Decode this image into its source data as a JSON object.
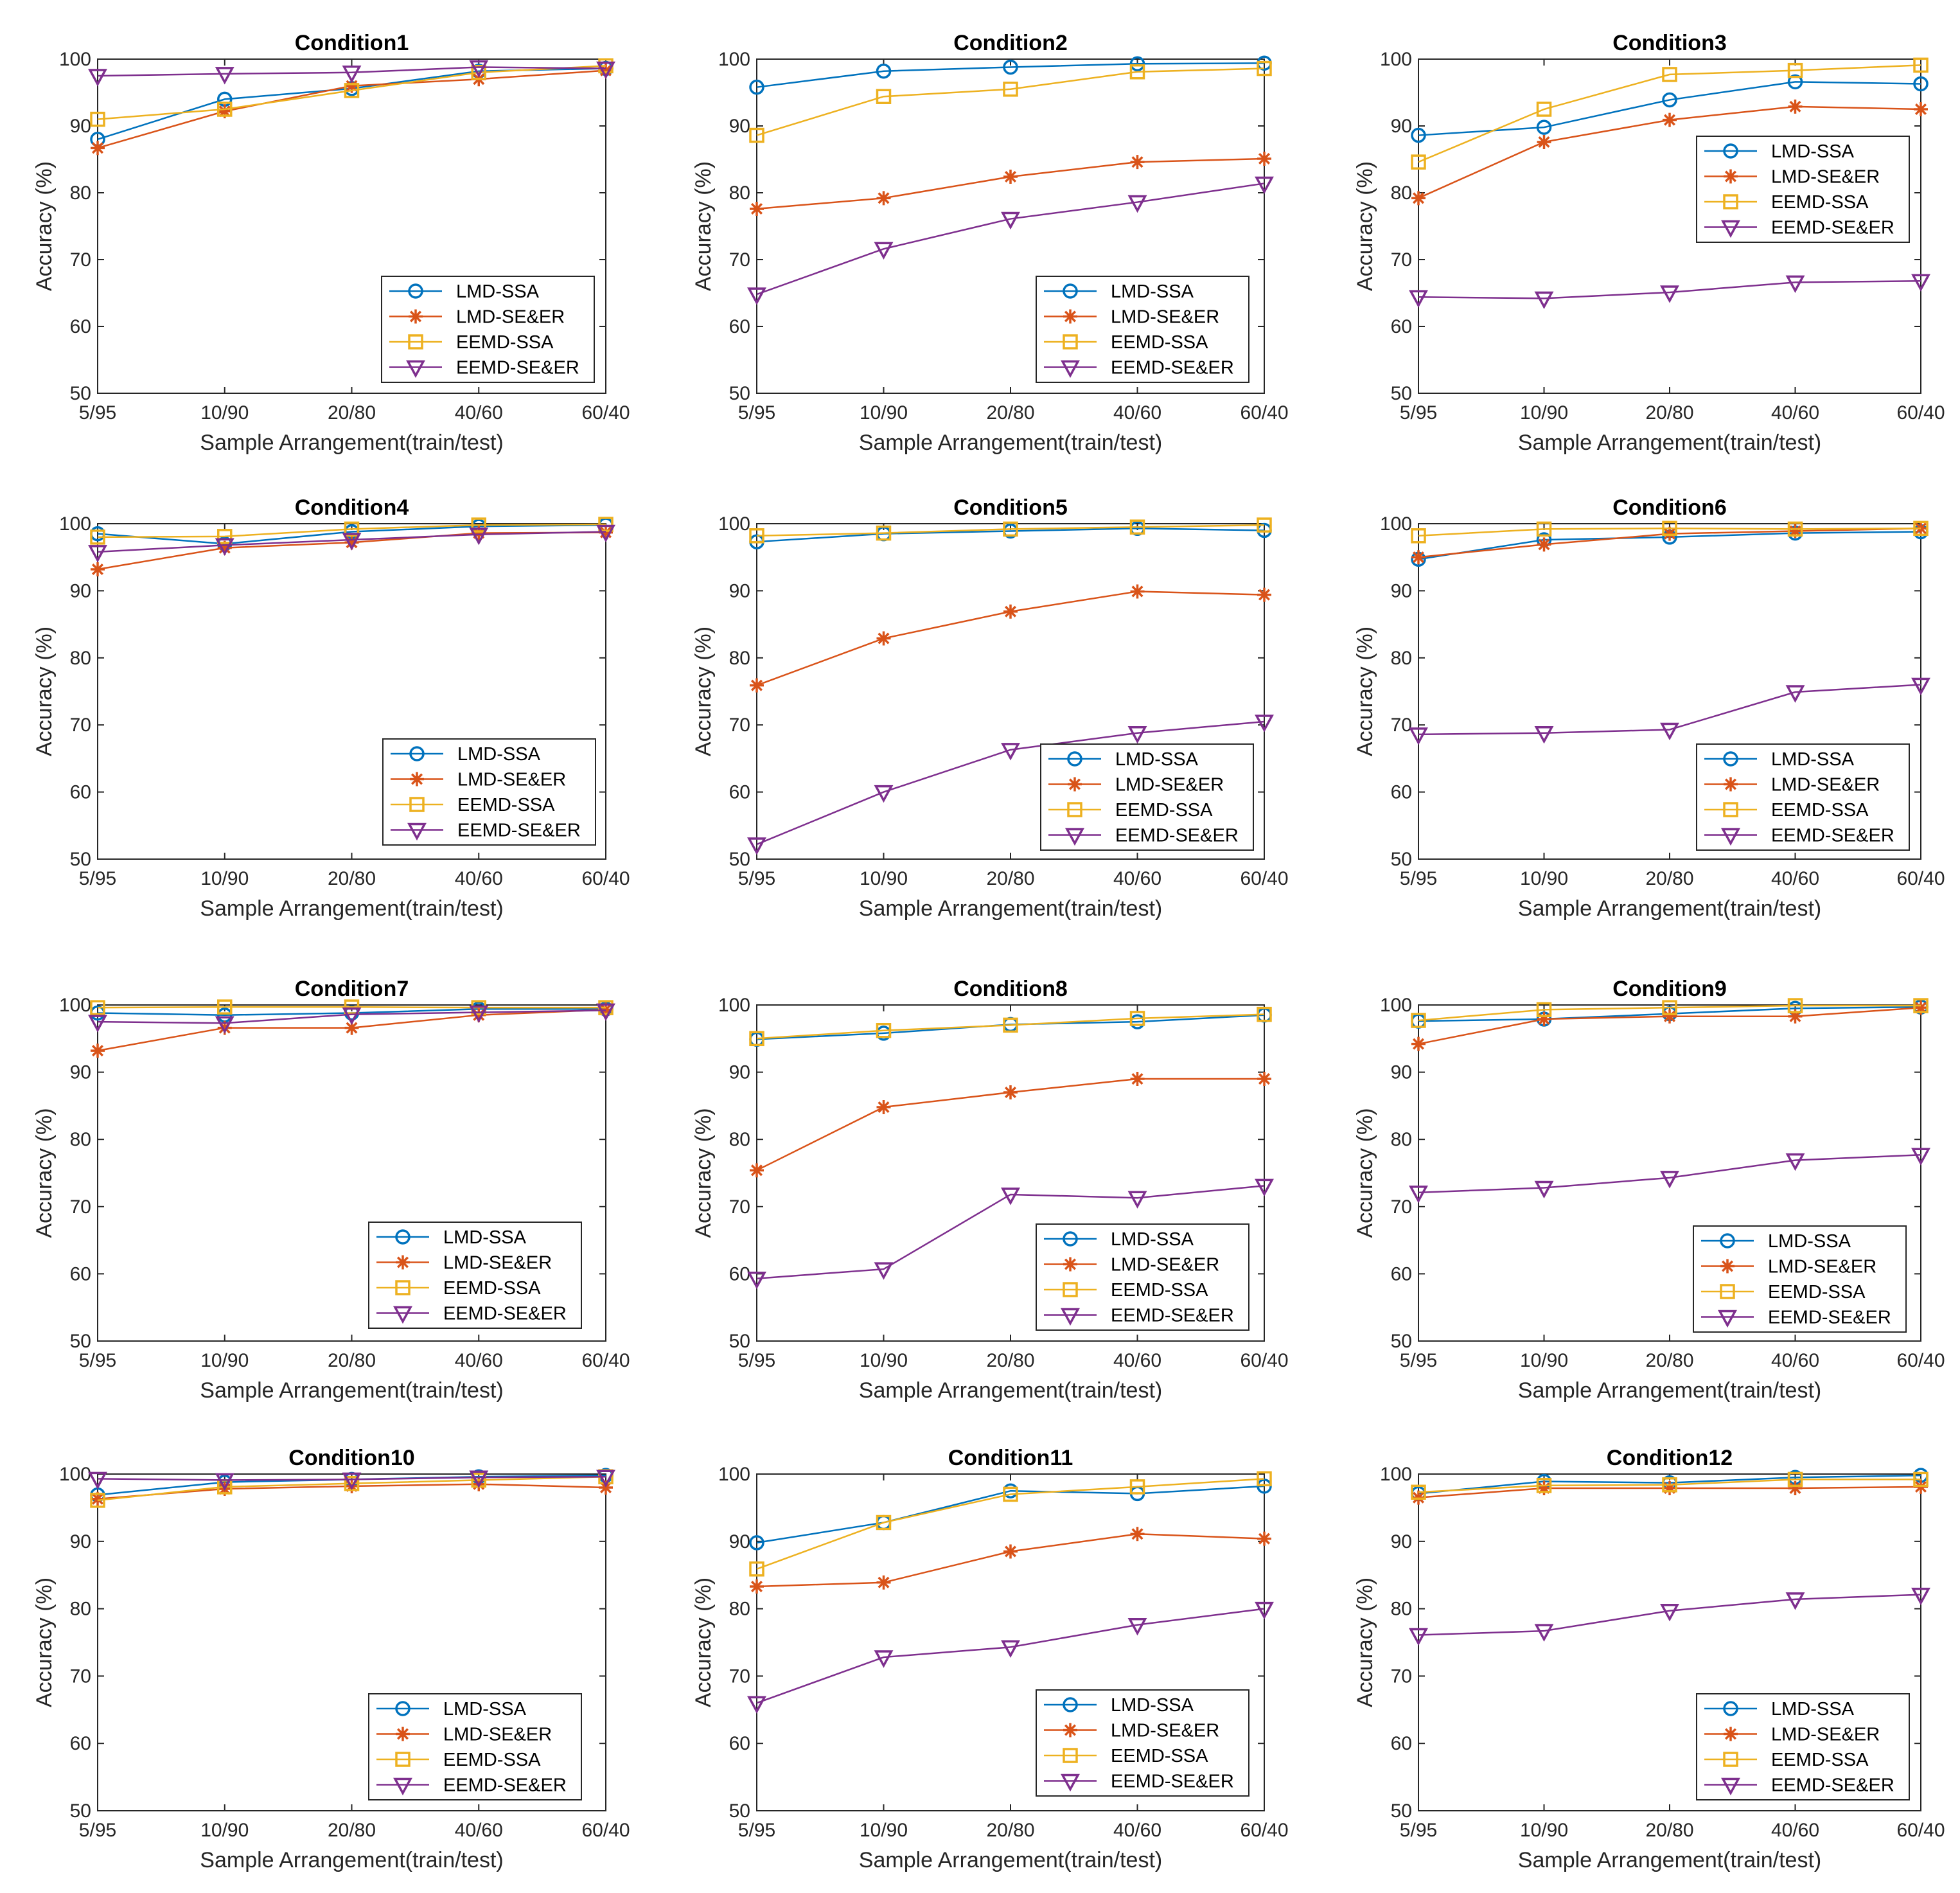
{
  "series_styles": [
    {
      "name": "LMD-SSA",
      "color": "#0072BD",
      "marker": "circle"
    },
    {
      "name": "LMD-SE&ER",
      "color": "#D95319",
      "marker": "asterisk"
    },
    {
      "name": "EEMD-SSA",
      "color": "#EDB120",
      "marker": "square"
    },
    {
      "name": "EEMD-SE&ER",
      "color": "#7E2F8E",
      "marker": "triangle-down"
    }
  ],
  "chart_data": [
    {
      "type": "line",
      "title": "Condition1",
      "xlabel": "Sample Arrangement(train/test)",
      "ylabel": "Accuracy (%)",
      "categories": [
        "5/95",
        "10/90",
        "20/80",
        "40/60",
        "60/40"
      ],
      "ylim": [
        50,
        100
      ],
      "yticks": [
        50,
        60,
        70,
        80,
        90,
        100
      ],
      "legend": "bottom-right",
      "series": [
        {
          "name": "LMD-SSA",
          "values": [
            88,
            94,
            95.6,
            98.2,
            98.6
          ]
        },
        {
          "name": "LMD-SE&ER",
          "values": [
            86.7,
            92.2,
            96,
            97,
            98.3
          ]
        },
        {
          "name": "EEMD-SSA",
          "values": [
            91,
            92.5,
            95.3,
            98,
            99
          ]
        },
        {
          "name": "EEMD-SE&ER",
          "values": [
            97.5,
            97.8,
            98,
            98.8,
            98.6
          ]
        }
      ]
    },
    {
      "type": "line",
      "title": "Condition2",
      "xlabel": "Sample Arrangement(train/test)",
      "ylabel": "Accuracy (%)",
      "categories": [
        "5/95",
        "10/90",
        "20/80",
        "40/60",
        "60/40"
      ],
      "ylim": [
        50,
        100
      ],
      "yticks": [
        50,
        60,
        70,
        80,
        90,
        100
      ],
      "legend": "bottom-right",
      "series": [
        {
          "name": "LMD-SSA",
          "values": [
            95.8,
            98.2,
            98.8,
            99.3,
            99.4
          ]
        },
        {
          "name": "LMD-SE&ER",
          "values": [
            77.6,
            79.2,
            82.4,
            84.6,
            85.1
          ]
        },
        {
          "name": "EEMD-SSA",
          "values": [
            88.6,
            94.4,
            95.5,
            98.1,
            98.6
          ]
        },
        {
          "name": "EEMD-SE&ER",
          "values": [
            64.8,
            71.6,
            76.1,
            78.6,
            81.4
          ]
        }
      ]
    },
    {
      "type": "line",
      "title": "Condition3",
      "xlabel": "Sample Arrangement(train/test)",
      "ylabel": "Accuracy (%)",
      "categories": [
        "5/95",
        "10/90",
        "20/80",
        "40/60",
        "60/40"
      ],
      "ylim": [
        50,
        100
      ],
      "yticks": [
        50,
        60,
        70,
        80,
        90,
        100
      ],
      "legend": "top-right",
      "series": [
        {
          "name": "LMD-SSA",
          "values": [
            88.6,
            89.8,
            93.9,
            96.6,
            96.3
          ]
        },
        {
          "name": "LMD-SE&ER",
          "values": [
            79.2,
            87.6,
            90.9,
            92.9,
            92.5
          ]
        },
        {
          "name": "EEMD-SSA",
          "values": [
            84.6,
            92.5,
            97.7,
            98.3,
            99.1
          ]
        },
        {
          "name": "EEMD-SE&ER",
          "values": [
            64.4,
            64.2,
            65.1,
            66.6,
            66.8
          ]
        }
      ]
    },
    {
      "type": "line",
      "title": "Condition4",
      "xlabel": "Sample Arrangement(train/test)",
      "ylabel": "Accuracy (%)",
      "categories": [
        "5/95",
        "10/90",
        "20/80",
        "40/60",
        "60/40"
      ],
      "ylim": [
        50,
        100
      ],
      "yticks": [
        50,
        60,
        70,
        80,
        90,
        100
      ],
      "legend": "bottom-right",
      "series": [
        {
          "name": "LMD-SSA",
          "values": [
            98.5,
            97,
            98.8,
            99.6,
            99.8
          ]
        },
        {
          "name": "LMD-SE&ER",
          "values": [
            93.2,
            96.4,
            97.2,
            98.6,
            98.7
          ]
        },
        {
          "name": "EEMD-SSA",
          "values": [
            98,
            98.1,
            99.2,
            99.8,
            99.9
          ]
        },
        {
          "name": "EEMD-SE&ER",
          "values": [
            95.8,
            96.8,
            97.6,
            98.4,
            98.8
          ]
        }
      ]
    },
    {
      "type": "line",
      "title": "Condition5",
      "xlabel": "Sample Arrangement(train/test)",
      "ylabel": "Accuracy (%)",
      "categories": [
        "5/95",
        "10/90",
        "20/80",
        "40/60",
        "60/40"
      ],
      "ylim": [
        50,
        100
      ],
      "yticks": [
        50,
        60,
        70,
        80,
        90,
        100
      ],
      "legend": "bottom-right",
      "series": [
        {
          "name": "LMD-SSA",
          "values": [
            97.3,
            98.5,
            98.9,
            99.3,
            99
          ]
        },
        {
          "name": "LMD-SE&ER",
          "values": [
            75.9,
            82.9,
            86.9,
            89.9,
            89.4
          ]
        },
        {
          "name": "EEMD-SSA",
          "values": [
            98.2,
            98.6,
            99.2,
            99.5,
            99.8
          ]
        },
        {
          "name": "EEMD-SE&ER",
          "values": [
            52.2,
            60,
            66.3,
            68.8,
            70.5
          ]
        }
      ]
    },
    {
      "type": "line",
      "title": "Condition6",
      "xlabel": "Sample Arrangement(train/test)",
      "ylabel": "Accuracy (%)",
      "categories": [
        "5/95",
        "10/90",
        "20/80",
        "40/60",
        "60/40"
      ],
      "ylim": [
        50,
        100
      ],
      "yticks": [
        50,
        60,
        70,
        80,
        90,
        100
      ],
      "legend": "bottom-right",
      "series": [
        {
          "name": "LMD-SSA",
          "values": [
            94.7,
            97.6,
            98,
            98.6,
            98.8
          ]
        },
        {
          "name": "LMD-SE&ER",
          "values": [
            95,
            96.9,
            98.5,
            98.9,
            99.3
          ]
        },
        {
          "name": "EEMD-SSA",
          "values": [
            98.2,
            99.2,
            99.3,
            99.2,
            99.3
          ]
        },
        {
          "name": "EEMD-SE&ER",
          "values": [
            68.6,
            68.8,
            69.3,
            74.9,
            76
          ]
        }
      ]
    },
    {
      "type": "line",
      "title": "Condition7",
      "xlabel": "Sample Arrangement(train/test)",
      "ylabel": "Accuracy (%)",
      "categories": [
        "5/95",
        "10/90",
        "20/80",
        "40/60",
        "60/40"
      ],
      "ylim": [
        50,
        100
      ],
      "yticks": [
        50,
        60,
        70,
        80,
        90,
        100
      ],
      "legend": "bottom-right",
      "series": [
        {
          "name": "LMD-SSA",
          "values": [
            98.8,
            98.5,
            98.8,
            99.4,
            99.4
          ]
        },
        {
          "name": "LMD-SE&ER",
          "values": [
            93.2,
            96.6,
            96.6,
            98.5,
            99.3
          ]
        },
        {
          "name": "EEMD-SSA",
          "values": [
            99.6,
            99.7,
            99.7,
            99.6,
            99.6
          ]
        },
        {
          "name": "EEMD-SE&ER",
          "values": [
            97.5,
            97.3,
            98.6,
            98.9,
            99.2
          ]
        }
      ]
    },
    {
      "type": "line",
      "title": "Condition8",
      "xlabel": "Sample Arrangement(train/test)",
      "ylabel": "Accuracy (%)",
      "categories": [
        "5/95",
        "10/90",
        "20/80",
        "40/60",
        "60/40"
      ],
      "ylim": [
        50,
        100
      ],
      "yticks": [
        50,
        60,
        70,
        80,
        90,
        100
      ],
      "legend": "bottom-right",
      "series": [
        {
          "name": "LMD-SSA",
          "values": [
            94.9,
            95.8,
            97.1,
            97.5,
            98.5
          ]
        },
        {
          "name": "LMD-SE&ER",
          "values": [
            75.4,
            84.8,
            87,
            89,
            89
          ]
        },
        {
          "name": "EEMD-SSA",
          "values": [
            95,
            96.2,
            97,
            98,
            98.6
          ]
        },
        {
          "name": "EEMD-SE&ER",
          "values": [
            59.3,
            60.7,
            71.8,
            71.3,
            73.1
          ]
        }
      ]
    },
    {
      "type": "line",
      "title": "Condition9",
      "xlabel": "Sample Arrangement(train/test)",
      "ylabel": "Accuracy (%)",
      "categories": [
        "5/95",
        "10/90",
        "20/80",
        "40/60",
        "60/40"
      ],
      "ylim": [
        50,
        100
      ],
      "yticks": [
        50,
        60,
        70,
        80,
        90,
        100
      ],
      "legend": "bottom-right",
      "series": [
        {
          "name": "LMD-SSA",
          "values": [
            97.6,
            97.9,
            98.7,
            99.5,
            99.7
          ]
        },
        {
          "name": "LMD-SE&ER",
          "values": [
            94.2,
            97.9,
            98.3,
            98.3,
            99.6
          ]
        },
        {
          "name": "EEMD-SSA",
          "values": [
            97.7,
            99.3,
            99.6,
            99.9,
            99.9
          ]
        },
        {
          "name": "EEMD-SE&ER",
          "values": [
            72.1,
            72.8,
            74.3,
            76.9,
            77.7
          ]
        }
      ]
    },
    {
      "type": "line",
      "title": "Condition10",
      "xlabel": "Sample Arrangement(train/test)",
      "ylabel": "Accuracy (%)",
      "categories": [
        "5/95",
        "10/90",
        "20/80",
        "40/60",
        "60/40"
      ],
      "ylim": [
        50,
        100
      ],
      "yticks": [
        50,
        60,
        70,
        80,
        90,
        100
      ],
      "legend": "bottom-right",
      "series": [
        {
          "name": "LMD-SSA",
          "values": [
            96.9,
            98.8,
            99.2,
            99.6,
            99.8
          ]
        },
        {
          "name": "LMD-SE&ER",
          "values": [
            96.3,
            97.8,
            98.2,
            98.5,
            98
          ]
        },
        {
          "name": "EEMD-SSA",
          "values": [
            96.1,
            98.1,
            98.6,
            99.1,
            99.6
          ]
        },
        {
          "name": "EEMD-SE&ER",
          "values": [
            99.3,
            99.1,
            99.2,
            99.5,
            99.6
          ]
        }
      ]
    },
    {
      "type": "line",
      "title": "Condition11",
      "xlabel": "Sample Arrangement(train/test)",
      "ylabel": "Accuracy (%)",
      "categories": [
        "5/95",
        "10/90",
        "20/80",
        "40/60",
        "60/40"
      ],
      "ylim": [
        50,
        100
      ],
      "yticks": [
        50,
        60,
        70,
        80,
        90,
        100
      ],
      "legend": "bottom-right",
      "series": [
        {
          "name": "LMD-SSA",
          "values": [
            89.8,
            92.8,
            97.5,
            97.1,
            98.2
          ]
        },
        {
          "name": "LMD-SE&ER",
          "values": [
            83.3,
            83.9,
            88.5,
            91.1,
            90.4
          ]
        },
        {
          "name": "EEMD-SSA",
          "values": [
            85.9,
            92.8,
            97,
            98.1,
            99.3
          ]
        },
        {
          "name": "EEMD-SE&ER",
          "values": [
            66,
            72.8,
            74.3,
            77.6,
            80
          ]
        }
      ]
    },
    {
      "type": "line",
      "title": "Condition12",
      "xlabel": "Sample Arrangement(train/test)",
      "ylabel": "Accuracy (%)",
      "categories": [
        "5/95",
        "10/90",
        "20/80",
        "40/60",
        "60/40"
      ],
      "ylim": [
        50,
        100
      ],
      "yticks": [
        50,
        60,
        70,
        80,
        90,
        100
      ],
      "legend": "bottom-right",
      "series": [
        {
          "name": "LMD-SSA",
          "values": [
            97.1,
            98.9,
            98.7,
            99.5,
            99.8
          ]
        },
        {
          "name": "LMD-SE&ER",
          "values": [
            96.5,
            97.9,
            97.9,
            97.9,
            98.1
          ]
        },
        {
          "name": "EEMD-SSA",
          "values": [
            97.3,
            98.3,
            98.4,
            99.2,
            99.2
          ]
        },
        {
          "name": "EEMD-SE&ER",
          "values": [
            76.1,
            76.7,
            79.7,
            81.4,
            82.1
          ]
        }
      ]
    }
  ]
}
